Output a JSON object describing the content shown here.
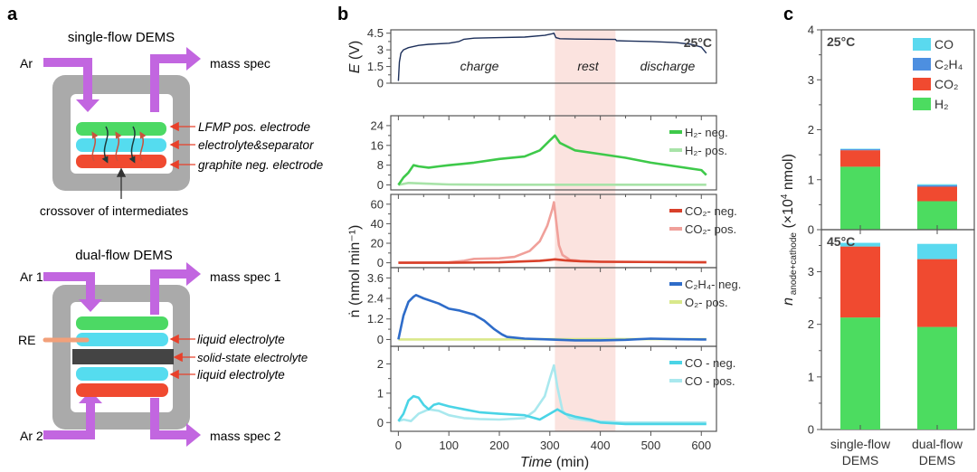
{
  "panels": {
    "a": {
      "label": "a",
      "single": {
        "title": "single-flow DEMS",
        "inlet": "Ar",
        "outlet": "mass spec",
        "layers": [
          "LFMP pos. electrode",
          "electrolyte&separator",
          "graphite neg. electrode"
        ],
        "note": "crossover of intermediates"
      },
      "dual": {
        "title": "dual-flow DEMS",
        "inlet1": "Ar 1",
        "outlet1": "mass spec 1",
        "inlet2": "Ar 2",
        "outlet2": "mass spec 2",
        "ref": "RE",
        "layers": [
          "liquid electrolyte",
          "solid-state electrolyte",
          "liquid electrolyte"
        ]
      },
      "colors": {
        "arrow": "#c266e0",
        "cell": "#aaaaaa",
        "green": "#4cd964",
        "cyan": "#55dcef",
        "red": "#f04a30",
        "dark": "#444444",
        "re": "#f2a07a",
        "pointer": "#e8402a"
      }
    },
    "b": {
      "label": "b"
    },
    "c": {
      "label": "c"
    }
  },
  "chart_data": [
    {
      "type": "line",
      "panel": "b",
      "xlabel": "Time (min)",
      "x_ticks": [
        0,
        100,
        200,
        300,
        400,
        500,
        600
      ],
      "xlim": [
        -15,
        630
      ],
      "rest_window": [
        310,
        430
      ],
      "rest_color": "#fbe3df",
      "ylabel_top": "E (V)",
      "ylabel_shared": "ṅ (nmol min⁻¹)",
      "subplots": [
        {
          "id": "voltage",
          "ylim": [
            0,
            4.8
          ],
          "yticks": [
            0,
            1.5,
            3,
            4.5
          ],
          "annotations": [
            "charge",
            "rest",
            "discharge"
          ],
          "temp_label": "25°C",
          "series": [
            {
              "name": "E",
              "color": "#1c2f5a",
              "x": [
                0,
                2,
                5,
                10,
                20,
                40,
                60,
                100,
                120,
                130,
                150,
                200,
                250,
                290,
                305,
                308,
                312,
                320,
                350,
                400,
                430,
                432,
                450,
                500,
                550,
                580,
                600,
                610
              ],
              "y": [
                0.2,
                1.9,
                2.7,
                3.0,
                3.2,
                3.4,
                3.5,
                3.6,
                3.75,
                3.95,
                4.05,
                4.1,
                4.15,
                4.3,
                4.45,
                4.5,
                4.1,
                4.0,
                3.97,
                3.95,
                3.94,
                3.82,
                3.8,
                3.75,
                3.65,
                3.5,
                3.25,
                2.7
              ]
            }
          ]
        },
        {
          "id": "h2",
          "ylim": [
            -2,
            28
          ],
          "yticks": [
            0,
            8,
            16,
            24
          ],
          "series": [
            {
              "name": "H₂- neg.",
              "color": "#3ec94a",
              "width": "thick",
              "x": [
                0,
                10,
                20,
                30,
                40,
                60,
                80,
                100,
                150,
                200,
                250,
                280,
                300,
                310,
                320,
                350,
                400,
                450,
                500,
                550,
                600,
                610
              ],
              "y": [
                0,
                3,
                5,
                8,
                7.5,
                7,
                7.5,
                8,
                9,
                10.5,
                11.5,
                14,
                18,
                20,
                17,
                14,
                12.5,
                11,
                9,
                7.5,
                6,
                4
              ]
            },
            {
              "name": "H₂- pos.",
              "color": "#a8e3a8",
              "width": "thick",
              "x": [
                0,
                20,
                60,
                100,
                200,
                400,
                610
              ],
              "y": [
                0,
                0.8,
                0.5,
                0.2,
                0.1,
                0.1,
                0.1
              ]
            }
          ]
        },
        {
          "id": "co2",
          "ylim": [
            -5,
            70
          ],
          "yticks": [
            0,
            20,
            40,
            60
          ],
          "series": [
            {
              "name": "CO₂- neg.",
              "color": "#d8402a",
              "width": "thick",
              "x": [
                0,
                100,
                200,
                280,
                300,
                310,
                330,
                360,
                400,
                610
              ],
              "y": [
                0,
                0,
                0.5,
                2,
                3,
                3.5,
                2.5,
                1.5,
                1,
                0.5
              ]
            },
            {
              "name": "CO₂- pos.",
              "color": "#f0a09a",
              "width": "thick",
              "x": [
                0,
                100,
                130,
                150,
                200,
                230,
                260,
                280,
                295,
                305,
                308,
                312,
                318,
                325,
                340,
                360,
                400,
                610
              ],
              "y": [
                0,
                0.5,
                2,
                4,
                4.5,
                6,
                12,
                22,
                38,
                55,
                62,
                45,
                18,
                8,
                3,
                2,
                1,
                0.5
              ]
            }
          ]
        },
        {
          "id": "c2h4",
          "ylim": [
            -0.4,
            4.2
          ],
          "yticks": [
            0,
            1.2,
            2.4,
            3.6
          ],
          "series": [
            {
              "name": "C₂H₄- neg.",
              "color": "#2e6cc9",
              "width": "thick",
              "x": [
                0,
                10,
                20,
                30,
                35,
                50,
                80,
                100,
                120,
                150,
                170,
                190,
                205,
                215,
                250,
                300,
                350,
                400,
                450,
                500,
                550,
                600,
                610
              ],
              "y": [
                0,
                1.4,
                2.2,
                2.5,
                2.6,
                2.4,
                2.1,
                1.8,
                1.7,
                1.45,
                1.1,
                0.6,
                0.3,
                0.15,
                0.05,
                0,
                -0.05,
                -0.05,
                -0.02,
                0.05,
                0.02,
                0,
                0
              ]
            },
            {
              "name": "O₂- pos.",
              "color": "#d9e88a",
              "width": "thick",
              "x": [
                0,
                100,
                200,
                300,
                400,
                500,
                610
              ],
              "y": [
                0,
                0,
                0,
                0.02,
                0.03,
                0.02,
                0.02
              ]
            }
          ]
        },
        {
          "id": "co",
          "ylim": [
            -0.3,
            2.6
          ],
          "yticks": [
            0,
            1,
            2
          ],
          "series": [
            {
              "name": "CO - neg.",
              "color": "#4ad4e6",
              "width": "thick",
              "x": [
                0,
                10,
                20,
                30,
                40,
                50,
                60,
                70,
                80,
                100,
                130,
                160,
                200,
                250,
                280,
                300,
                315,
                330,
                350,
                380,
                400,
                450,
                500,
                550,
                610
              ],
              "y": [
                0.05,
                0.3,
                0.75,
                0.9,
                0.85,
                0.6,
                0.45,
                0.6,
                0.65,
                0.55,
                0.45,
                0.35,
                0.3,
                0.25,
                0.1,
                0.3,
                0.45,
                0.3,
                0.2,
                0.1,
                0,
                -0.05,
                -0.05,
                -0.05,
                -0.05
              ]
            },
            {
              "name": "CO - pos.",
              "color": "#a9e8ee",
              "width": "thick",
              "x": [
                0,
                10,
                25,
                40,
                60,
                80,
                100,
                130,
                160,
                200,
                250,
                270,
                290,
                300,
                308,
                315,
                325,
                340,
                380,
                450,
                610
              ],
              "y": [
                0.05,
                0.1,
                0.05,
                0.3,
                0.45,
                0.4,
                0.25,
                0.15,
                0.12,
                0.1,
                0.15,
                0.4,
                0.9,
                1.5,
                1.95,
                1.2,
                0.4,
                0.15,
                0.05,
                0,
                0
              ]
            }
          ]
        }
      ]
    },
    {
      "type": "bar",
      "panel": "c",
      "stacked": true,
      "categories": [
        "single-flow DEMS",
        "dual-flow DEMS"
      ],
      "ylabel": "n anode+cathode (×10⁴ nmol)",
      "legend": [
        "CO",
        "C₂H₄",
        "CO₂",
        "H₂"
      ],
      "legend_colors": {
        "CO": "#5ad9ef",
        "C₂H₄": "#4d8fe0",
        "CO₂": "#f04a30",
        "H₂": "#4cdc60"
      },
      "legend_position": "top-right",
      "subplots": [
        {
          "temp_label": "25°C",
          "ylim": [
            0,
            4
          ],
          "yticks": [
            0,
            1,
            2,
            3,
            4
          ],
          "series": [
            {
              "name": "H₂",
              "values": [
                1.26,
                0.57
              ]
            },
            {
              "name": "CO₂",
              "values": [
                0.33,
                0.29
              ]
            },
            {
              "name": "C₂H₄",
              "values": [
                0.02,
                0.03
              ]
            },
            {
              "name": "CO",
              "values": [
                0.01,
                0.02
              ]
            }
          ]
        },
        {
          "temp_label": "45°C",
          "ylim": [
            0,
            3.8
          ],
          "yticks": [
            0,
            1,
            2,
            3
          ],
          "series": [
            {
              "name": "H₂",
              "values": [
                2.13,
                1.95
              ]
            },
            {
              "name": "CO₂",
              "values": [
                1.35,
                1.29
              ]
            },
            {
              "name": "C₂H₄",
              "values": [
                0.0,
                0.0
              ]
            },
            {
              "name": "CO",
              "values": [
                0.07,
                0.29
              ]
            }
          ]
        }
      ]
    }
  ]
}
